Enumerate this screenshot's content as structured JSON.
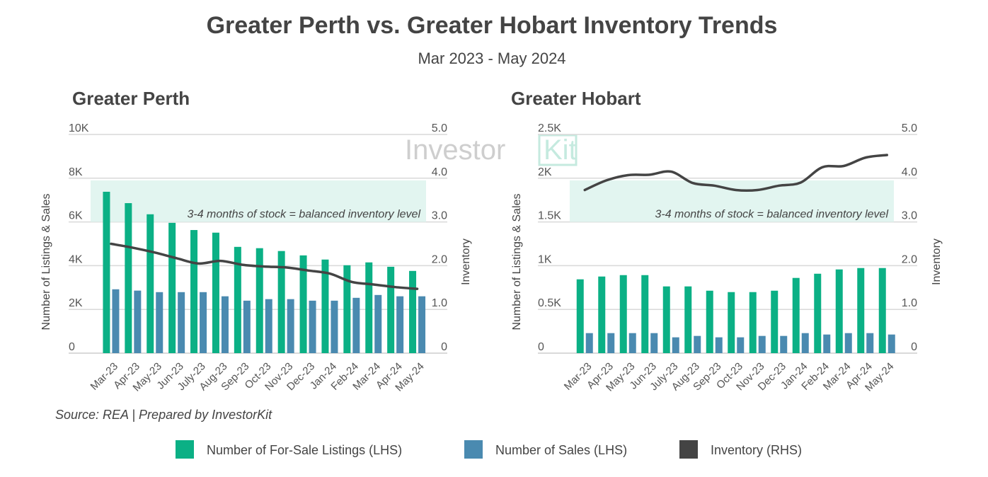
{
  "title": "Greater Perth vs. Greater Hobart Inventory Trends",
  "subtitle": "Mar 2023 - May 2024",
  "source": "Source: REA | Prepared by InvestorKit",
  "watermark": "InvestorKit",
  "colors": {
    "listings": "#0bb085",
    "sales": "#4a8ab0",
    "inventory": "#444444",
    "band": "#dff4ee",
    "grid": "#d9d9d9"
  },
  "legend": [
    {
      "label": "Number of For-Sale Listings (LHS)",
      "color": "#0bb085"
    },
    {
      "label": "Number of Sales (LHS)",
      "color": "#4a8ab0"
    },
    {
      "label": "Inventory (RHS)",
      "color": "#444444"
    }
  ],
  "chart_data": [
    {
      "type": "bar",
      "title": "Greater Perth",
      "categories": [
        "Mar-23",
        "Apr-23",
        "May-23",
        "Jun-23",
        "July-23",
        "Aug-23",
        "Sep-23",
        "Oct-23",
        "Nov-23",
        "Dec-23",
        "Jan-24",
        "Feb-24",
        "Mar-24",
        "Apr-24",
        "May-24"
      ],
      "ylabel": "Number of Listings & Sales",
      "y2label": "Inventory",
      "ylim": [
        0,
        10000
      ],
      "y2lim": [
        0,
        5.0
      ],
      "yticks": [
        "0",
        "2K",
        "4K",
        "6K",
        "8K",
        "10K"
      ],
      "y2ticks": [
        "0",
        "1.0",
        "2.0",
        "3.0",
        "4.0",
        "5.0"
      ],
      "grid": true,
      "band": {
        "range": [
          3.0,
          3.95
        ],
        "label": "3-4 months of stock = balanced inventory level"
      },
      "series": [
        {
          "name": "Number of For-Sale Listings (LHS)",
          "type": "bar",
          "axis": "left",
          "values": [
            7380,
            6860,
            6350,
            5960,
            5630,
            5510,
            4860,
            4800,
            4670,
            4470,
            4280,
            4020,
            4150,
            3950,
            3760
          ]
        },
        {
          "name": "Number of Sales (LHS)",
          "type": "bar",
          "axis": "left",
          "values": [
            2920,
            2860,
            2790,
            2790,
            2790,
            2600,
            2400,
            2470,
            2470,
            2400,
            2400,
            2530,
            2660,
            2600,
            2600
          ]
        },
        {
          "name": "Inventory (RHS)",
          "type": "line",
          "axis": "right",
          "values": [
            2.5,
            2.41,
            2.3,
            2.17,
            2.05,
            2.11,
            2.02,
            1.98,
            1.96,
            1.89,
            1.82,
            1.63,
            1.57,
            1.51,
            1.47
          ]
        }
      ]
    },
    {
      "type": "bar",
      "title": "Greater Hobart",
      "categories": [
        "Mar-23",
        "Apr-23",
        "May-23",
        "Jun-23",
        "July-23",
        "Aug-23",
        "Sep-23",
        "Oct-23",
        "Nov-23",
        "Dec-23",
        "Jan-24",
        "Feb-24",
        "Mar-24",
        "Apr-24",
        "May-24"
      ],
      "ylabel": "Number of Listings & Sales",
      "y2label": "Inventory",
      "ylim": [
        0,
        2500
      ],
      "y2lim": [
        0,
        5.0
      ],
      "yticks": [
        "0",
        "0.5K",
        "1K",
        "1.5K",
        "2K",
        "2.5K"
      ],
      "y2ticks": [
        "0",
        "1.0",
        "2.0",
        "3.0",
        "4.0",
        "5.0"
      ],
      "grid": true,
      "band": {
        "range": [
          3.0,
          3.95
        ],
        "label": "3-4 months of stock = balanced inventory level"
      },
      "series": [
        {
          "name": "Number of For-Sale Listings (LHS)",
          "type": "bar",
          "axis": "left",
          "values": [
            844,
            876,
            892,
            892,
            763,
            763,
            714,
            698,
            698,
            714,
            860,
            908,
            957,
            973,
            973
          ]
        },
        {
          "name": "Number of Sales (LHS)",
          "type": "bar",
          "axis": "left",
          "values": [
            229,
            229,
            229,
            229,
            181,
            197,
            181,
            181,
            197,
            197,
            229,
            213,
            229,
            229,
            213
          ]
        },
        {
          "name": "Inventory (RHS)",
          "type": "line",
          "axis": "right",
          "values": [
            3.73,
            3.95,
            4.07,
            4.08,
            4.15,
            3.89,
            3.83,
            3.73,
            3.73,
            3.83,
            3.9,
            4.25,
            4.28,
            4.47,
            4.53
          ]
        }
      ]
    }
  ]
}
